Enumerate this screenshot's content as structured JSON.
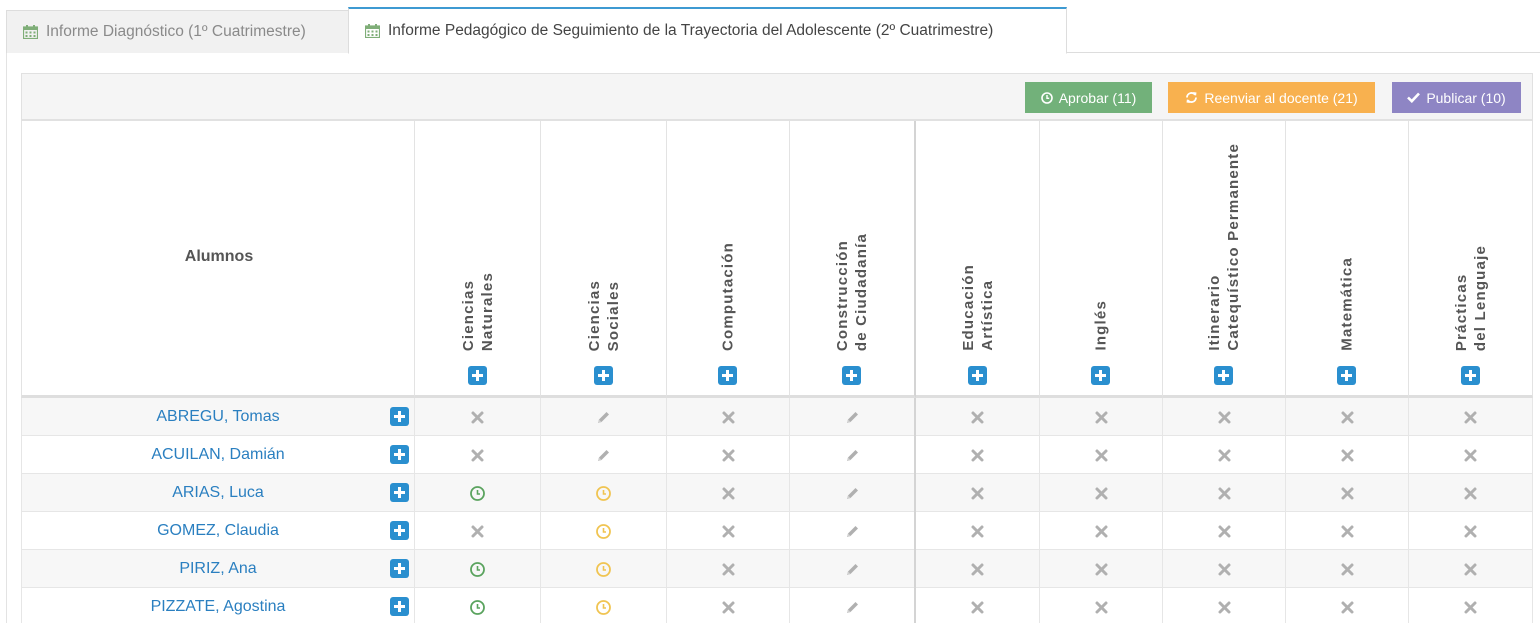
{
  "tabs": [
    {
      "label": "Informe Diagnóstico (1º Cuatrimestre)",
      "active": false
    },
    {
      "label": "Informe Pedagógico de Seguimiento de la Trayectoria del Adolescente (2º Cuatrimestre)",
      "active": true
    }
  ],
  "toolbar": {
    "approve_label": "Aprobar (11)",
    "resend_label": "Reenviar al docente (21)",
    "publish_label": "Publicar (10)"
  },
  "table": {
    "students_header": "Alumnos",
    "subjects": [
      {
        "label": "Ciencias\nNaturales"
      },
      {
        "label": "Ciencias\nSociales"
      },
      {
        "label": "Computación"
      },
      {
        "label": "Construcción\nde Ciudadanía"
      },
      {
        "label": "Educación\nArtística"
      },
      {
        "label": "Inglés"
      },
      {
        "label": "Itinerario\nCatequístico Permanente"
      },
      {
        "label": "Matemática"
      },
      {
        "label": "Prácticas\ndel Lenguaje"
      }
    ],
    "rows": [
      {
        "name": "ABREGU, Tomas",
        "status": [
          "x",
          "pencil",
          "x",
          "pencil",
          "x",
          "x",
          "x",
          "x",
          "x"
        ]
      },
      {
        "name": "ACUILAN, Damián",
        "status": [
          "x",
          "pencil",
          "x",
          "pencil",
          "x",
          "x",
          "x",
          "x",
          "x"
        ]
      },
      {
        "name": "ARIAS, Luca",
        "status": [
          "clock-green",
          "clock-yellow",
          "x",
          "pencil",
          "x",
          "x",
          "x",
          "x",
          "x"
        ]
      },
      {
        "name": "GOMEZ, Claudia",
        "status": [
          "x",
          "clock-yellow",
          "x",
          "pencil",
          "x",
          "x",
          "x",
          "x",
          "x"
        ]
      },
      {
        "name": "PIRIZ, Ana",
        "status": [
          "clock-green",
          "clock-yellow",
          "x",
          "pencil",
          "x",
          "x",
          "x",
          "x",
          "x"
        ]
      },
      {
        "name": "PIZZATE, Agostina",
        "status": [
          "clock-green",
          "clock-yellow",
          "x",
          "pencil",
          "x",
          "x",
          "x",
          "x",
          "x"
        ]
      }
    ]
  },
  "icons": {
    "tab": "calendar-icon",
    "approve": "clock-icon",
    "resend": "refresh-icon",
    "publish": "check-icon",
    "add": "plus-square-icon"
  },
  "colors": {
    "tab_active_border": "#3d9ad2",
    "approve": "#72b17a",
    "resend": "#f8b14f",
    "publish": "#8e85c4",
    "link": "#2a7fc0",
    "plus": "#2a8fcf",
    "clock_green": "#5aa35e",
    "clock_yellow": "#f0c451",
    "icon_gray": "#b0b0b0"
  }
}
